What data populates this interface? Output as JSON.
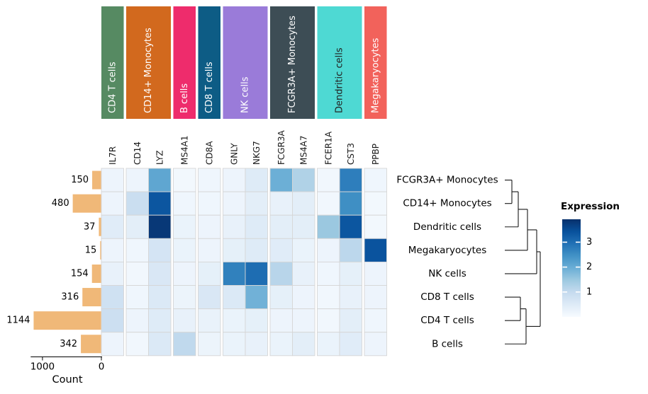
{
  "chart_data": {
    "type": "heatmap",
    "description": "Matrix plot of mean marker gene expression per cell type, with cell counts bar chart and dendrogram",
    "genes": [
      "IL7R",
      "CD14",
      "LYZ",
      "MS4A1",
      "CD8A",
      "GNLY",
      "NKG7",
      "FCGR3A",
      "MS4A7",
      "FCER1A",
      "CST3",
      "PPBP"
    ],
    "row_labels": [
      "FCGR3A+ Monocytes",
      "CD14+ Monocytes",
      "Dendritic cells",
      "Megakaryocytes",
      "NK cells",
      "CD8 T cells",
      "CD4 T cells",
      "B cells"
    ],
    "column_groups": [
      {
        "label": "CD4 T cells",
        "color": "#568a62",
        "text_color": "#ffffff",
        "genes": [
          "IL7R"
        ]
      },
      {
        "label": "CD14+ Monocytes",
        "color": "#d2691e",
        "text_color": "#ffffff",
        "genes": [
          "CD14",
          "LYZ"
        ]
      },
      {
        "label": "B cells",
        "color": "#ee2c6c",
        "text_color": "#ffffff",
        "genes": [
          "MS4A1"
        ]
      },
      {
        "label": "CD8 T cells",
        "color": "#0d5c85",
        "text_color": "#ffffff",
        "genes": [
          "CD8A"
        ]
      },
      {
        "label": "NK cells",
        "color": "#9a7bd9",
        "text_color": "#ffffff",
        "genes": [
          "GNLY",
          "NKG7"
        ]
      },
      {
        "label": "FCGR3A+ Monocytes",
        "color": "#3d4d55",
        "text_color": "#ffffff",
        "genes": [
          "FCGR3A",
          "MS4A7"
        ]
      },
      {
        "label": "Dendritic cells",
        "color": "#4ed9d3",
        "text_color": "#222222",
        "genes": [
          "FCER1A",
          "CST3"
        ]
      },
      {
        "label": "Megakaryocytes",
        "color": "#f2625b",
        "text_color": "#ffffff",
        "genes": [
          "PPBP"
        ]
      }
    ],
    "values": [
      [
        0.2,
        0.2,
        2.1,
        0.1,
        0.15,
        0.2,
        0.5,
        1.95,
        1.25,
        0.12,
        2.75,
        0.15
      ],
      [
        0.2,
        0.9,
        3.35,
        0.15,
        0.15,
        0.2,
        0.4,
        0.3,
        0.4,
        0.12,
        2.5,
        0.1
      ],
      [
        0.45,
        0.4,
        3.8,
        0.25,
        0.2,
        0.3,
        0.5,
        0.4,
        0.4,
        1.5,
        3.35,
        0.1
      ],
      [
        0.2,
        0.15,
        0.7,
        0.25,
        0.2,
        0.35,
        0.5,
        0.45,
        0.25,
        0.2,
        1.1,
        3.4
      ],
      [
        0.3,
        0.12,
        0.6,
        0.2,
        0.35,
        2.7,
        3.0,
        1.15,
        0.3,
        0.15,
        0.35,
        0.2
      ],
      [
        0.8,
        0.15,
        0.55,
        0.22,
        0.6,
        0.55,
        1.9,
        0.35,
        0.2,
        0.12,
        0.3,
        0.2
      ],
      [
        0.85,
        0.2,
        0.5,
        0.3,
        0.28,
        0.25,
        0.35,
        0.2,
        0.2,
        0.12,
        0.4,
        0.15
      ],
      [
        0.2,
        0.12,
        0.55,
        1.05,
        0.22,
        0.25,
        0.3,
        0.25,
        0.4,
        0.25,
        0.45,
        0.2
      ]
    ],
    "counts": [
      150,
      480,
      37,
      15,
      154,
      316,
      1144,
      342
    ],
    "count_axis": {
      "ticks": [
        1000,
        0
      ],
      "label": "Count",
      "max": 1200
    },
    "bar_color": "#f0b878",
    "colorbar": {
      "title": "Expression",
      "ticks": [
        1,
        2,
        3
      ],
      "vmin": 0,
      "vmax": 3.92,
      "colormap": "Blues"
    },
    "dendrogram": {
      "leaf_order": [
        "FCGR3A+ Monocytes",
        "CD14+ Monocytes",
        "Dendritic cells",
        "Megakaryocytes",
        "NK cells",
        "CD8 T cells",
        "CD4 T cells",
        "B cells"
      ],
      "merges": [
        {
          "a": 0,
          "b": 1,
          "dist": 0.2
        },
        {
          "a": 8,
          "b": 2,
          "dist": 0.38
        },
        {
          "a": 9,
          "b": 3,
          "dist": 0.64
        },
        {
          "a": 10,
          "b": 4,
          "dist": 0.9
        },
        {
          "a": 5,
          "b": 6,
          "dist": 0.44
        },
        {
          "a": 12,
          "b": 7,
          "dist": 0.6
        },
        {
          "a": 11,
          "b": 13,
          "dist": 1.0
        }
      ]
    }
  }
}
